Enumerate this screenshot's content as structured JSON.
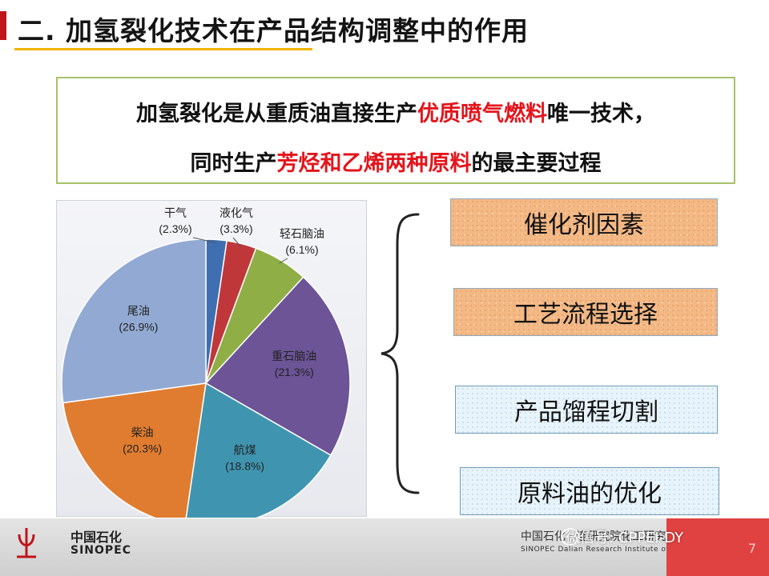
{
  "slide": {
    "title": "二. 加氢裂化技术在产品结构调整中的作用",
    "statement": {
      "line1_pre": "加氢裂化是从重质油直接生产",
      "line1_highlight": "优质喷气燃料",
      "line1_post": "唯一技术，",
      "line2_pre": "同时生产",
      "line2_highlight": "芳烃和乙烯两种原料",
      "line2_post": "的最主要过程"
    },
    "factors": [
      "催化剂因素",
      "工艺流程选择",
      "产品馏程切割",
      "原料油的优化"
    ]
  },
  "chart_data": {
    "type": "pie",
    "title": "",
    "labels": [
      "干气",
      "液化气",
      "轻石脑油",
      "重石脑油",
      "航煤",
      "柴油",
      "尾油"
    ],
    "values": [
      2.3,
      3.3,
      6.1,
      21.3,
      18.8,
      20.3,
      26.9
    ],
    "value_labels": [
      "(2.3%)",
      "(3.3%)",
      "(6.1%)",
      "(21.3%)",
      "(18.8%)",
      "(20.3%)",
      "(26.9%)"
    ],
    "unit": "%",
    "start": "12 o'clock, clockwise",
    "colors": [
      "#3f6fb0",
      "#c0373a",
      "#8fae46",
      "#6c5497",
      "#3f95b0",
      "#e07c30",
      "#92aad3"
    ],
    "legend": "none"
  },
  "footer": {
    "logo_cn": "中国石化",
    "logo_en": "SINOPEC",
    "inst_cn": "中国石化  ·  连研究院化工研究院",
    "inst_en": "SINOPEC Dalian Research Institute of Petroleum and Petrochemicals",
    "watermark": "微信号: CPPEI-DY",
    "page": "7"
  }
}
